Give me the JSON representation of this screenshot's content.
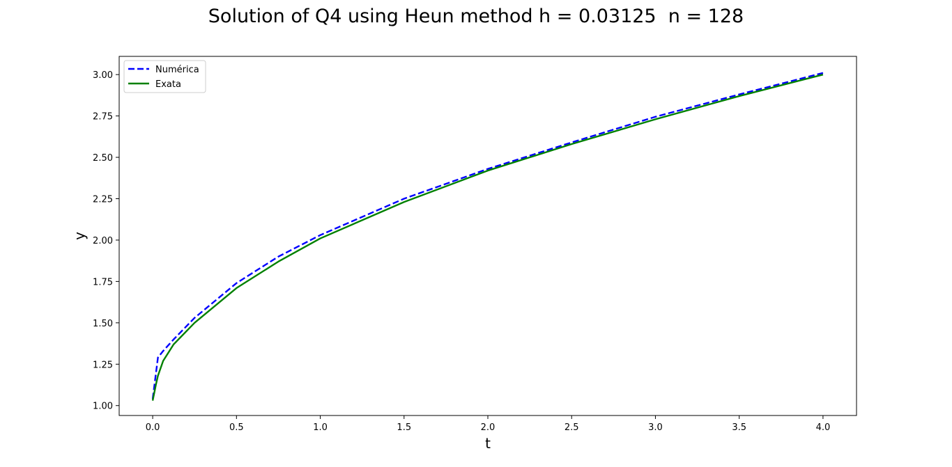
{
  "chart_data": {
    "type": "line",
    "title": "Solution of Q4 using Heun method h = 0.03125  n = 128",
    "xlabel": "t",
    "ylabel": "y",
    "xlim": [
      -0.2,
      4.2
    ],
    "ylim": [
      0.94,
      3.11
    ],
    "xticks": [
      0.0,
      0.5,
      1.0,
      1.5,
      2.0,
      2.5,
      3.0,
      3.5,
      4.0
    ],
    "xtick_labels": [
      "0.0",
      "0.5",
      "1.0",
      "1.5",
      "2.0",
      "2.5",
      "3.0",
      "3.5",
      "4.0"
    ],
    "yticks": [
      1.0,
      1.25,
      1.5,
      1.75,
      2.0,
      2.25,
      2.5,
      2.75,
      3.0
    ],
    "ytick_labels": [
      "1.00",
      "1.25",
      "1.50",
      "1.75",
      "2.00",
      "2.25",
      "2.50",
      "2.75",
      "3.00"
    ],
    "grid": false,
    "legend_position": "upper-left",
    "series": [
      {
        "name": "Numérica",
        "color": "#0000ff",
        "style": "dashed",
        "x": [
          0.0,
          0.03125,
          0.0625,
          0.125,
          0.25,
          0.5,
          0.75,
          1.0,
          1.5,
          2.0,
          2.5,
          3.0,
          3.5,
          4.0
        ],
        "y": [
          1.04,
          1.29,
          1.33,
          1.4,
          1.53,
          1.74,
          1.9,
          2.03,
          2.25,
          2.43,
          2.59,
          2.745,
          2.88,
          3.01
        ]
      },
      {
        "name": "Exata",
        "color": "#008000",
        "style": "solid",
        "x": [
          0.0,
          0.01,
          0.02,
          0.03125,
          0.0625,
          0.125,
          0.25,
          0.5,
          0.75,
          1.0,
          1.5,
          2.0,
          2.5,
          3.0,
          3.5,
          4.0
        ],
        "y": [
          1.03,
          1.08,
          1.13,
          1.18,
          1.27,
          1.37,
          1.5,
          1.71,
          1.87,
          2.01,
          2.23,
          2.42,
          2.58,
          2.73,
          2.87,
          3.0
        ]
      }
    ]
  }
}
